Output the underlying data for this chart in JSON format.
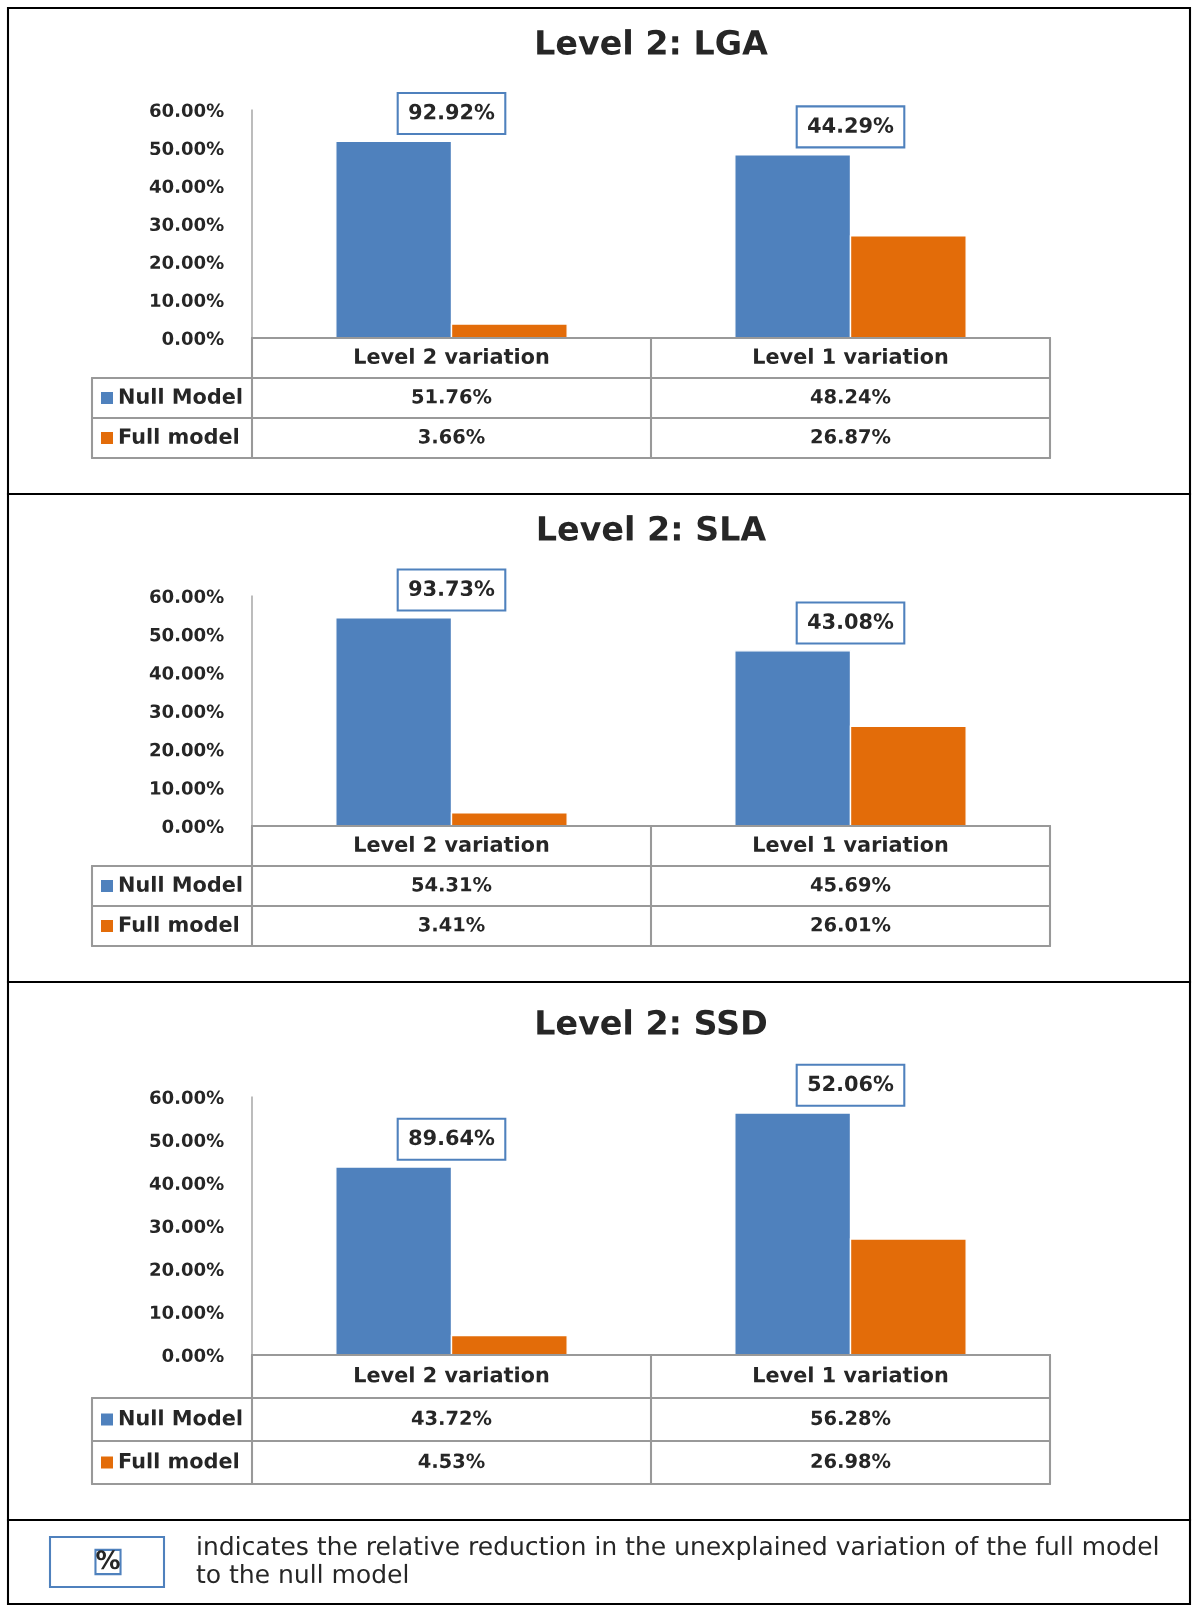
{
  "chart_data": [
    {
      "type": "bar",
      "title": "Level 2: LGA",
      "categories": [
        "Level 2 variation",
        "Level 1 variation"
      ],
      "series": [
        {
          "name": "Null Model",
          "color": "#4f81bd",
          "values": [
            51.76,
            48.24
          ],
          "value_labels": [
            "51.76%",
            "48.24%"
          ]
        },
        {
          "name": "Full model",
          "color": "#e36c09",
          "values": [
            3.66,
            26.87
          ],
          "value_labels": [
            "3.66%",
            "26.87%"
          ]
        }
      ],
      "ylim": [
        0,
        60
      ],
      "yticks": [
        {
          "value": 0,
          "label": "0.00%"
        },
        {
          "value": 10,
          "label": "10.00%"
        },
        {
          "value": 20,
          "label": "20.00%"
        },
        {
          "value": 30,
          "label": "30.00%"
        },
        {
          "value": 40,
          "label": "40.00%"
        },
        {
          "value": 50,
          "label": "50.00%"
        },
        {
          "value": 60,
          "label": "60.00%"
        }
      ],
      "annotations": [
        "92.92%",
        "44.29%"
      ],
      "legend": "bottom",
      "grid": false
    },
    {
      "type": "bar",
      "title": "Level 2: SLA",
      "categories": [
        "Level 2 variation",
        "Level 1 variation"
      ],
      "series": [
        {
          "name": "Null Model",
          "color": "#4f81bd",
          "values": [
            54.31,
            45.69
          ],
          "value_labels": [
            "54.31%",
            "45.69%"
          ]
        },
        {
          "name": "Full model",
          "color": "#e36c09",
          "values": [
            3.41,
            26.01
          ],
          "value_labels": [
            "3.41%",
            "26.01%"
          ]
        }
      ],
      "ylim": [
        0,
        60
      ],
      "yticks": [
        {
          "value": 0,
          "label": "0.00%"
        },
        {
          "value": 10,
          "label": "10.00%"
        },
        {
          "value": 20,
          "label": "20.00%"
        },
        {
          "value": 30,
          "label": "30.00%"
        },
        {
          "value": 40,
          "label": "40.00%"
        },
        {
          "value": 50,
          "label": "50.00%"
        },
        {
          "value": 60,
          "label": "60.00%"
        }
      ],
      "annotations": [
        "93.73%",
        "43.08%"
      ],
      "legend": "bottom",
      "grid": false
    },
    {
      "type": "bar",
      "title": "Level 2: SSD",
      "categories": [
        "Level 2 variation",
        "Level 1 variation"
      ],
      "series": [
        {
          "name": "Null Model",
          "color": "#4f81bd",
          "values": [
            43.72,
            56.28
          ],
          "value_labels": [
            "43.72%",
            "56.28%"
          ]
        },
        {
          "name": "Full model",
          "color": "#e36c09",
          "values": [
            4.53,
            26.98
          ],
          "value_labels": [
            "4.53%",
            "26.98%"
          ]
        }
      ],
      "ylim": [
        0,
        60
      ],
      "yticks": [
        {
          "value": 0,
          "label": "0.00%"
        },
        {
          "value": 10,
          "label": "10.00%"
        },
        {
          "value": 20,
          "label": "20.00%"
        },
        {
          "value": 30,
          "label": "30.00%"
        },
        {
          "value": 40,
          "label": "40.00%"
        },
        {
          "value": 50,
          "label": "50.00%"
        },
        {
          "value": 60,
          "label": "60.00%"
        }
      ],
      "annotations": [
        "89.64%",
        "52.06%"
      ],
      "legend": "bottom",
      "grid": false
    },
    {
      "type": "other",
      "annotations": [
        "%",
        "indicates the relative reduction in the unexplained variation of the full model to the null model"
      ]
    }
  ]
}
